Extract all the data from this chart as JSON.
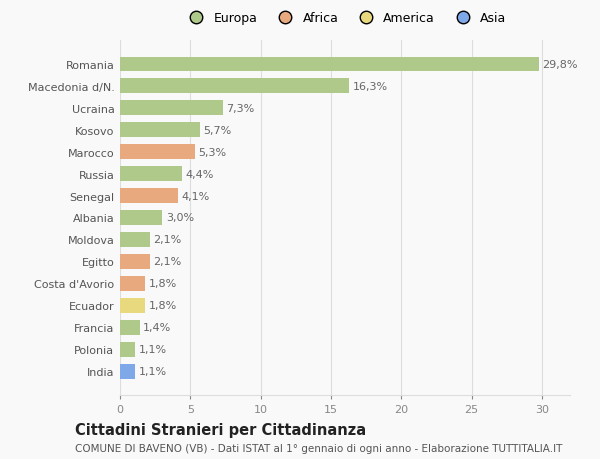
{
  "categories": [
    "Romania",
    "Macedonia d/N.",
    "Ucraina",
    "Kosovo",
    "Marocco",
    "Russia",
    "Senegal",
    "Albania",
    "Moldova",
    "Egitto",
    "Costa d'Avorio",
    "Ecuador",
    "Francia",
    "Polonia",
    "India"
  ],
  "values": [
    29.8,
    16.3,
    7.3,
    5.7,
    5.3,
    4.4,
    4.1,
    3.0,
    2.1,
    2.1,
    1.8,
    1.8,
    1.4,
    1.1,
    1.1
  ],
  "labels": [
    "29,8%",
    "16,3%",
    "7,3%",
    "5,7%",
    "5,3%",
    "4,4%",
    "4,1%",
    "3,0%",
    "2,1%",
    "2,1%",
    "1,8%",
    "1,8%",
    "1,4%",
    "1,1%",
    "1,1%"
  ],
  "continents": [
    "Europa",
    "Europa",
    "Europa",
    "Europa",
    "Africa",
    "Europa",
    "Africa",
    "Europa",
    "Europa",
    "Africa",
    "Africa",
    "America",
    "Europa",
    "Europa",
    "Asia"
  ],
  "colors": {
    "Europa": "#aec98a",
    "Africa": "#e8a97e",
    "America": "#e8d87e",
    "Asia": "#7ea8e8"
  },
  "legend_labels": [
    "Europa",
    "Africa",
    "America",
    "Asia"
  ],
  "legend_colors": [
    "#aec98a",
    "#e8a97e",
    "#e8d87e",
    "#7ea8e8"
  ],
  "title": "Cittadini Stranieri per Cittadinanza",
  "subtitle": "COMUNE DI BAVENO (VB) - Dati ISTAT al 1° gennaio di ogni anno - Elaborazione TUTTITALIA.IT",
  "xlim": [
    0,
    32
  ],
  "xticks": [
    0,
    5,
    10,
    15,
    20,
    25,
    30
  ],
  "background_color": "#f9f9f9",
  "grid_color": "#dddddd",
  "bar_height": 0.65,
  "label_fontsize": 8,
  "tick_fontsize": 8,
  "title_fontsize": 10.5,
  "subtitle_fontsize": 7.5
}
